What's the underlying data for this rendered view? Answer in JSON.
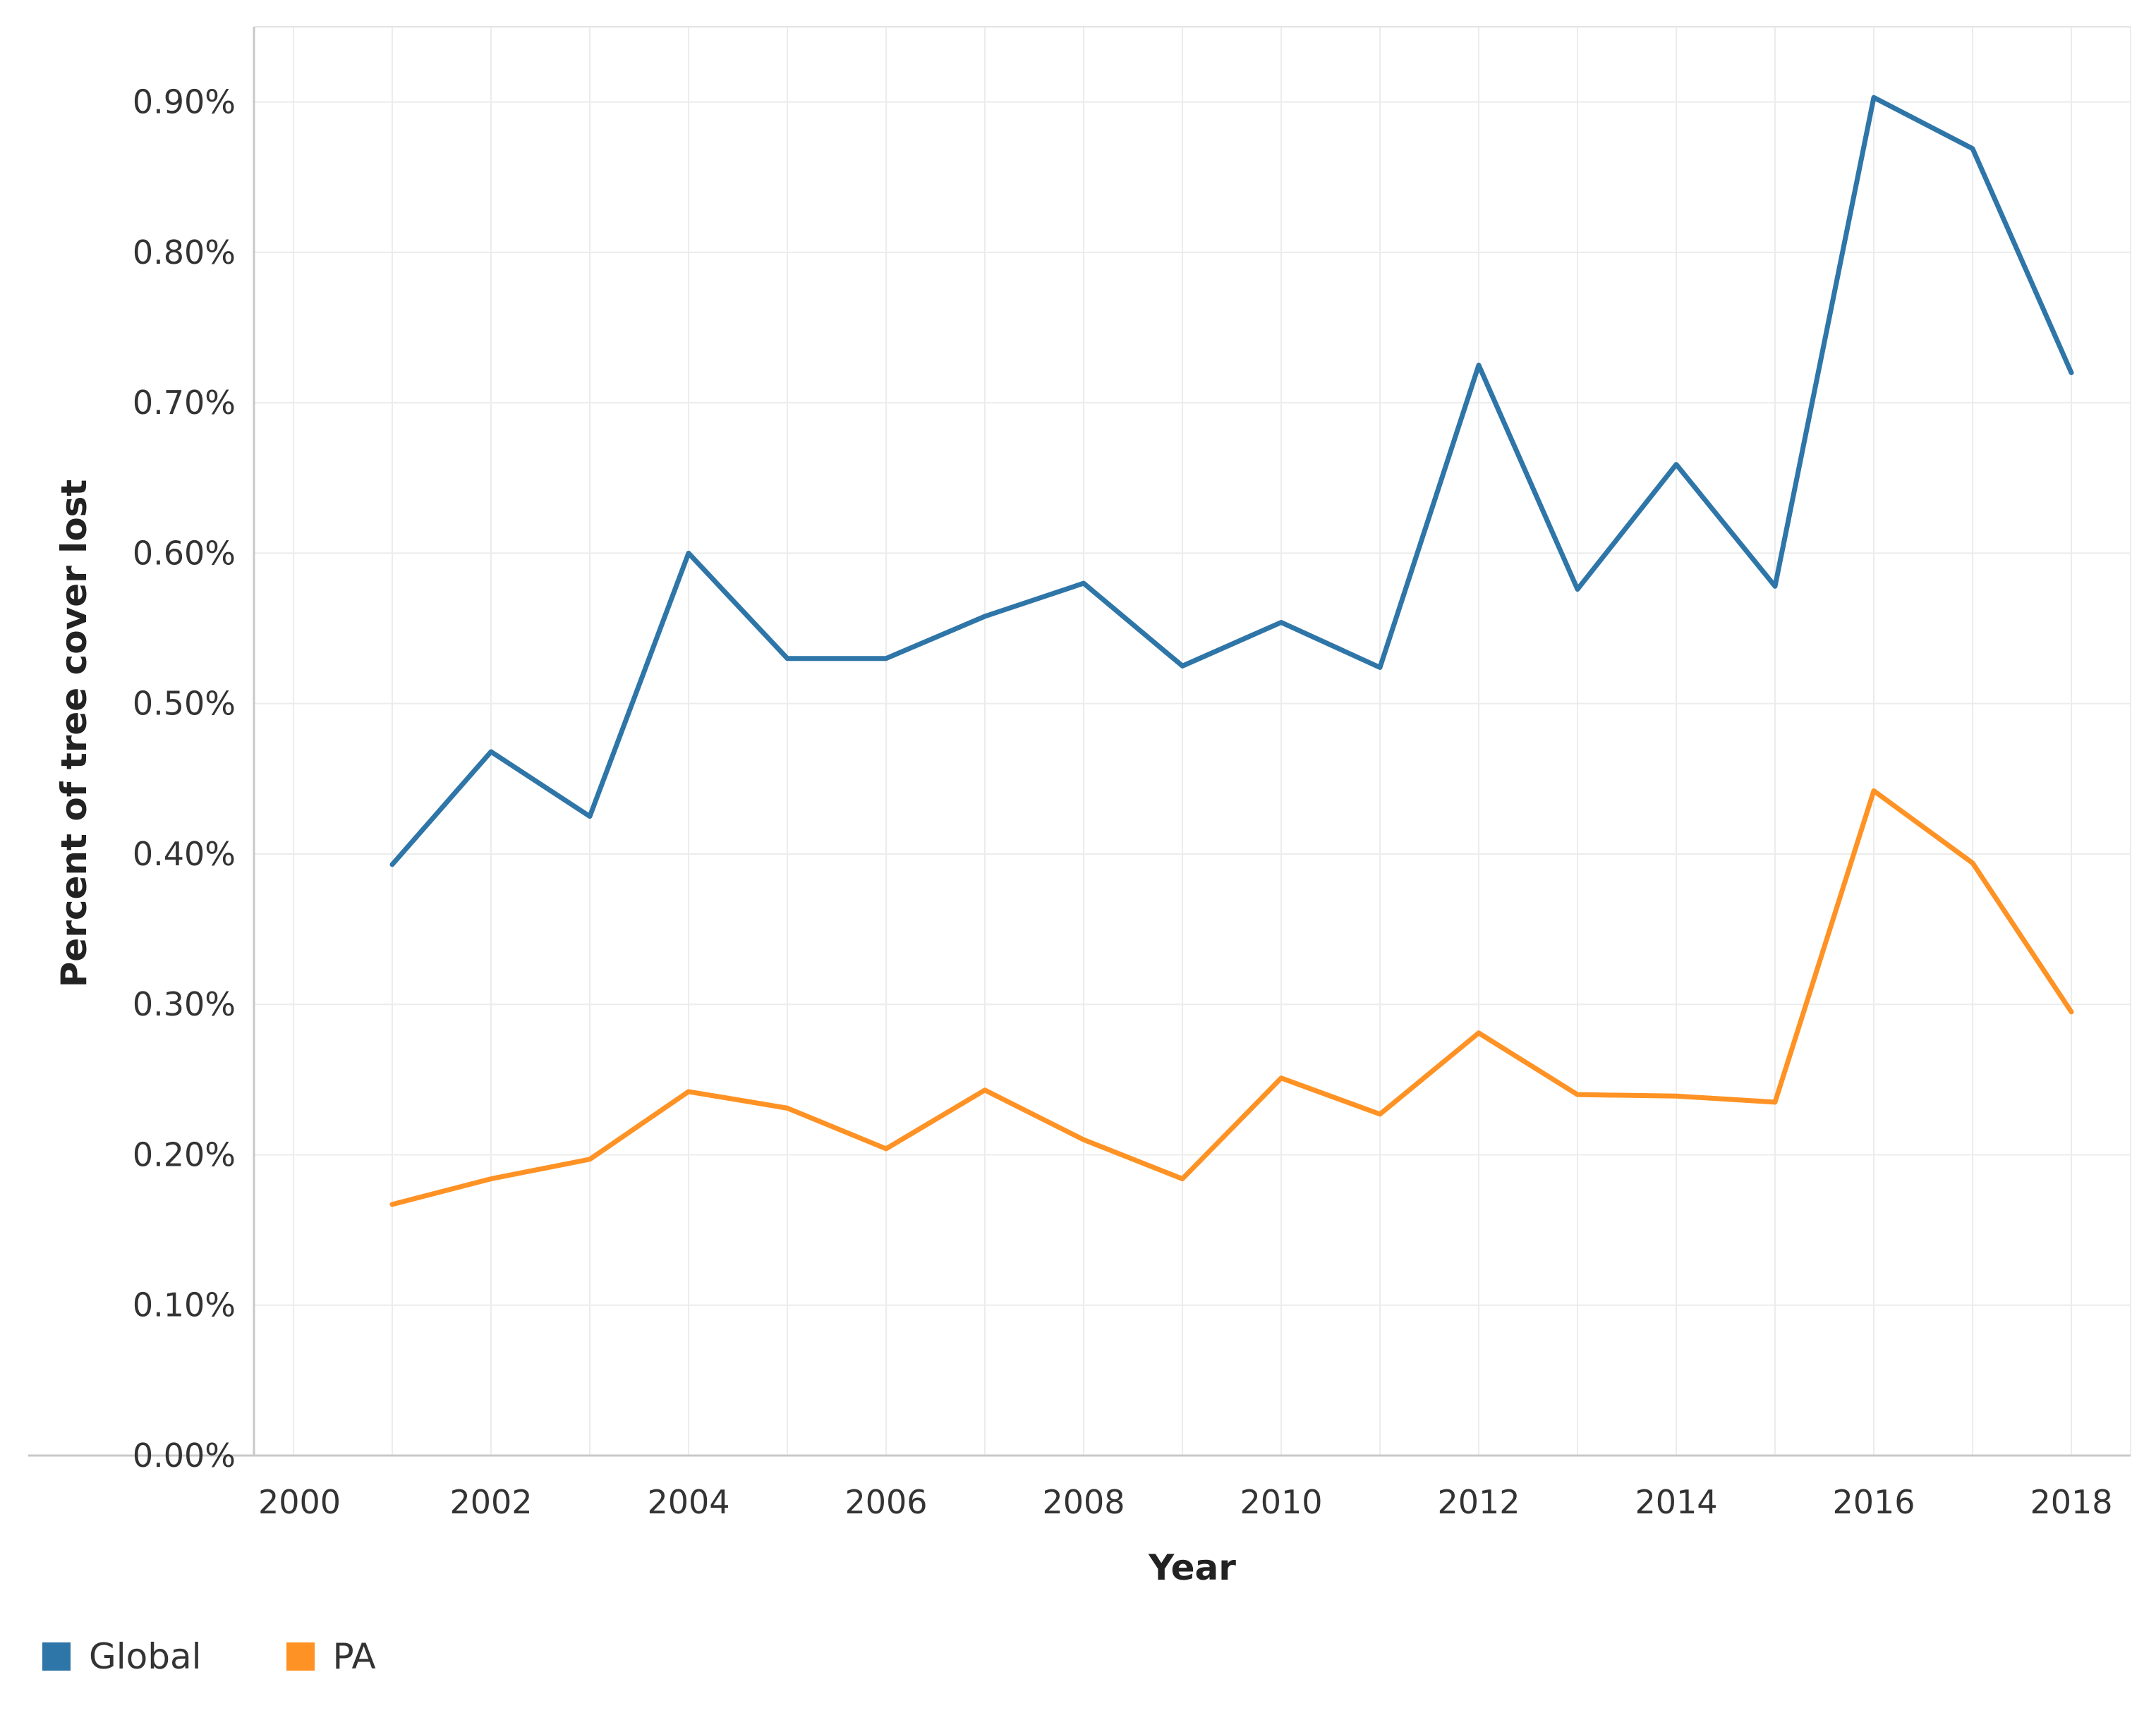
{
  "chart_data": {
    "type": "line",
    "title": "",
    "xlabel": "Year",
    "ylabel": "Percent of tree cover lost",
    "xlim": [
      1999.6,
      2018.6
    ],
    "ylim": [
      0,
      0.95
    ],
    "x_ticks": [
      "2000",
      "2002",
      "2004",
      "2006",
      "2008",
      "2010",
      "2012",
      "2014",
      "2016",
      "2018"
    ],
    "y_ticks": [
      "0.00%",
      "0.10%",
      "0.20%",
      "0.30%",
      "0.40%",
      "0.50%",
      "0.60%",
      "0.70%",
      "0.80%",
      "0.90%"
    ],
    "grid": true,
    "x": [
      2001,
      2002,
      2003,
      2004,
      2005,
      2006,
      2007,
      2008,
      2009,
      2010,
      2011,
      2012,
      2013,
      2014,
      2015,
      2016,
      2017,
      2018
    ],
    "series": [
      {
        "name": "Global",
        "color": "#2e75a8",
        "values": [
          0.393,
          0.468,
          0.425,
          0.6,
          0.53,
          0.53,
          0.558,
          0.58,
          0.525,
          0.554,
          0.524,
          0.725,
          0.576,
          0.659,
          0.578,
          0.903,
          0.869,
          0.72
        ]
      },
      {
        "name": "PA",
        "color": "#ff9224",
        "values": [
          0.167,
          0.184,
          0.197,
          0.242,
          0.231,
          0.204,
          0.243,
          0.21,
          0.184,
          0.251,
          0.227,
          0.281,
          0.24,
          0.239,
          0.235,
          0.442,
          0.394,
          0.295
        ]
      }
    ],
    "legend": "bottom-left"
  }
}
